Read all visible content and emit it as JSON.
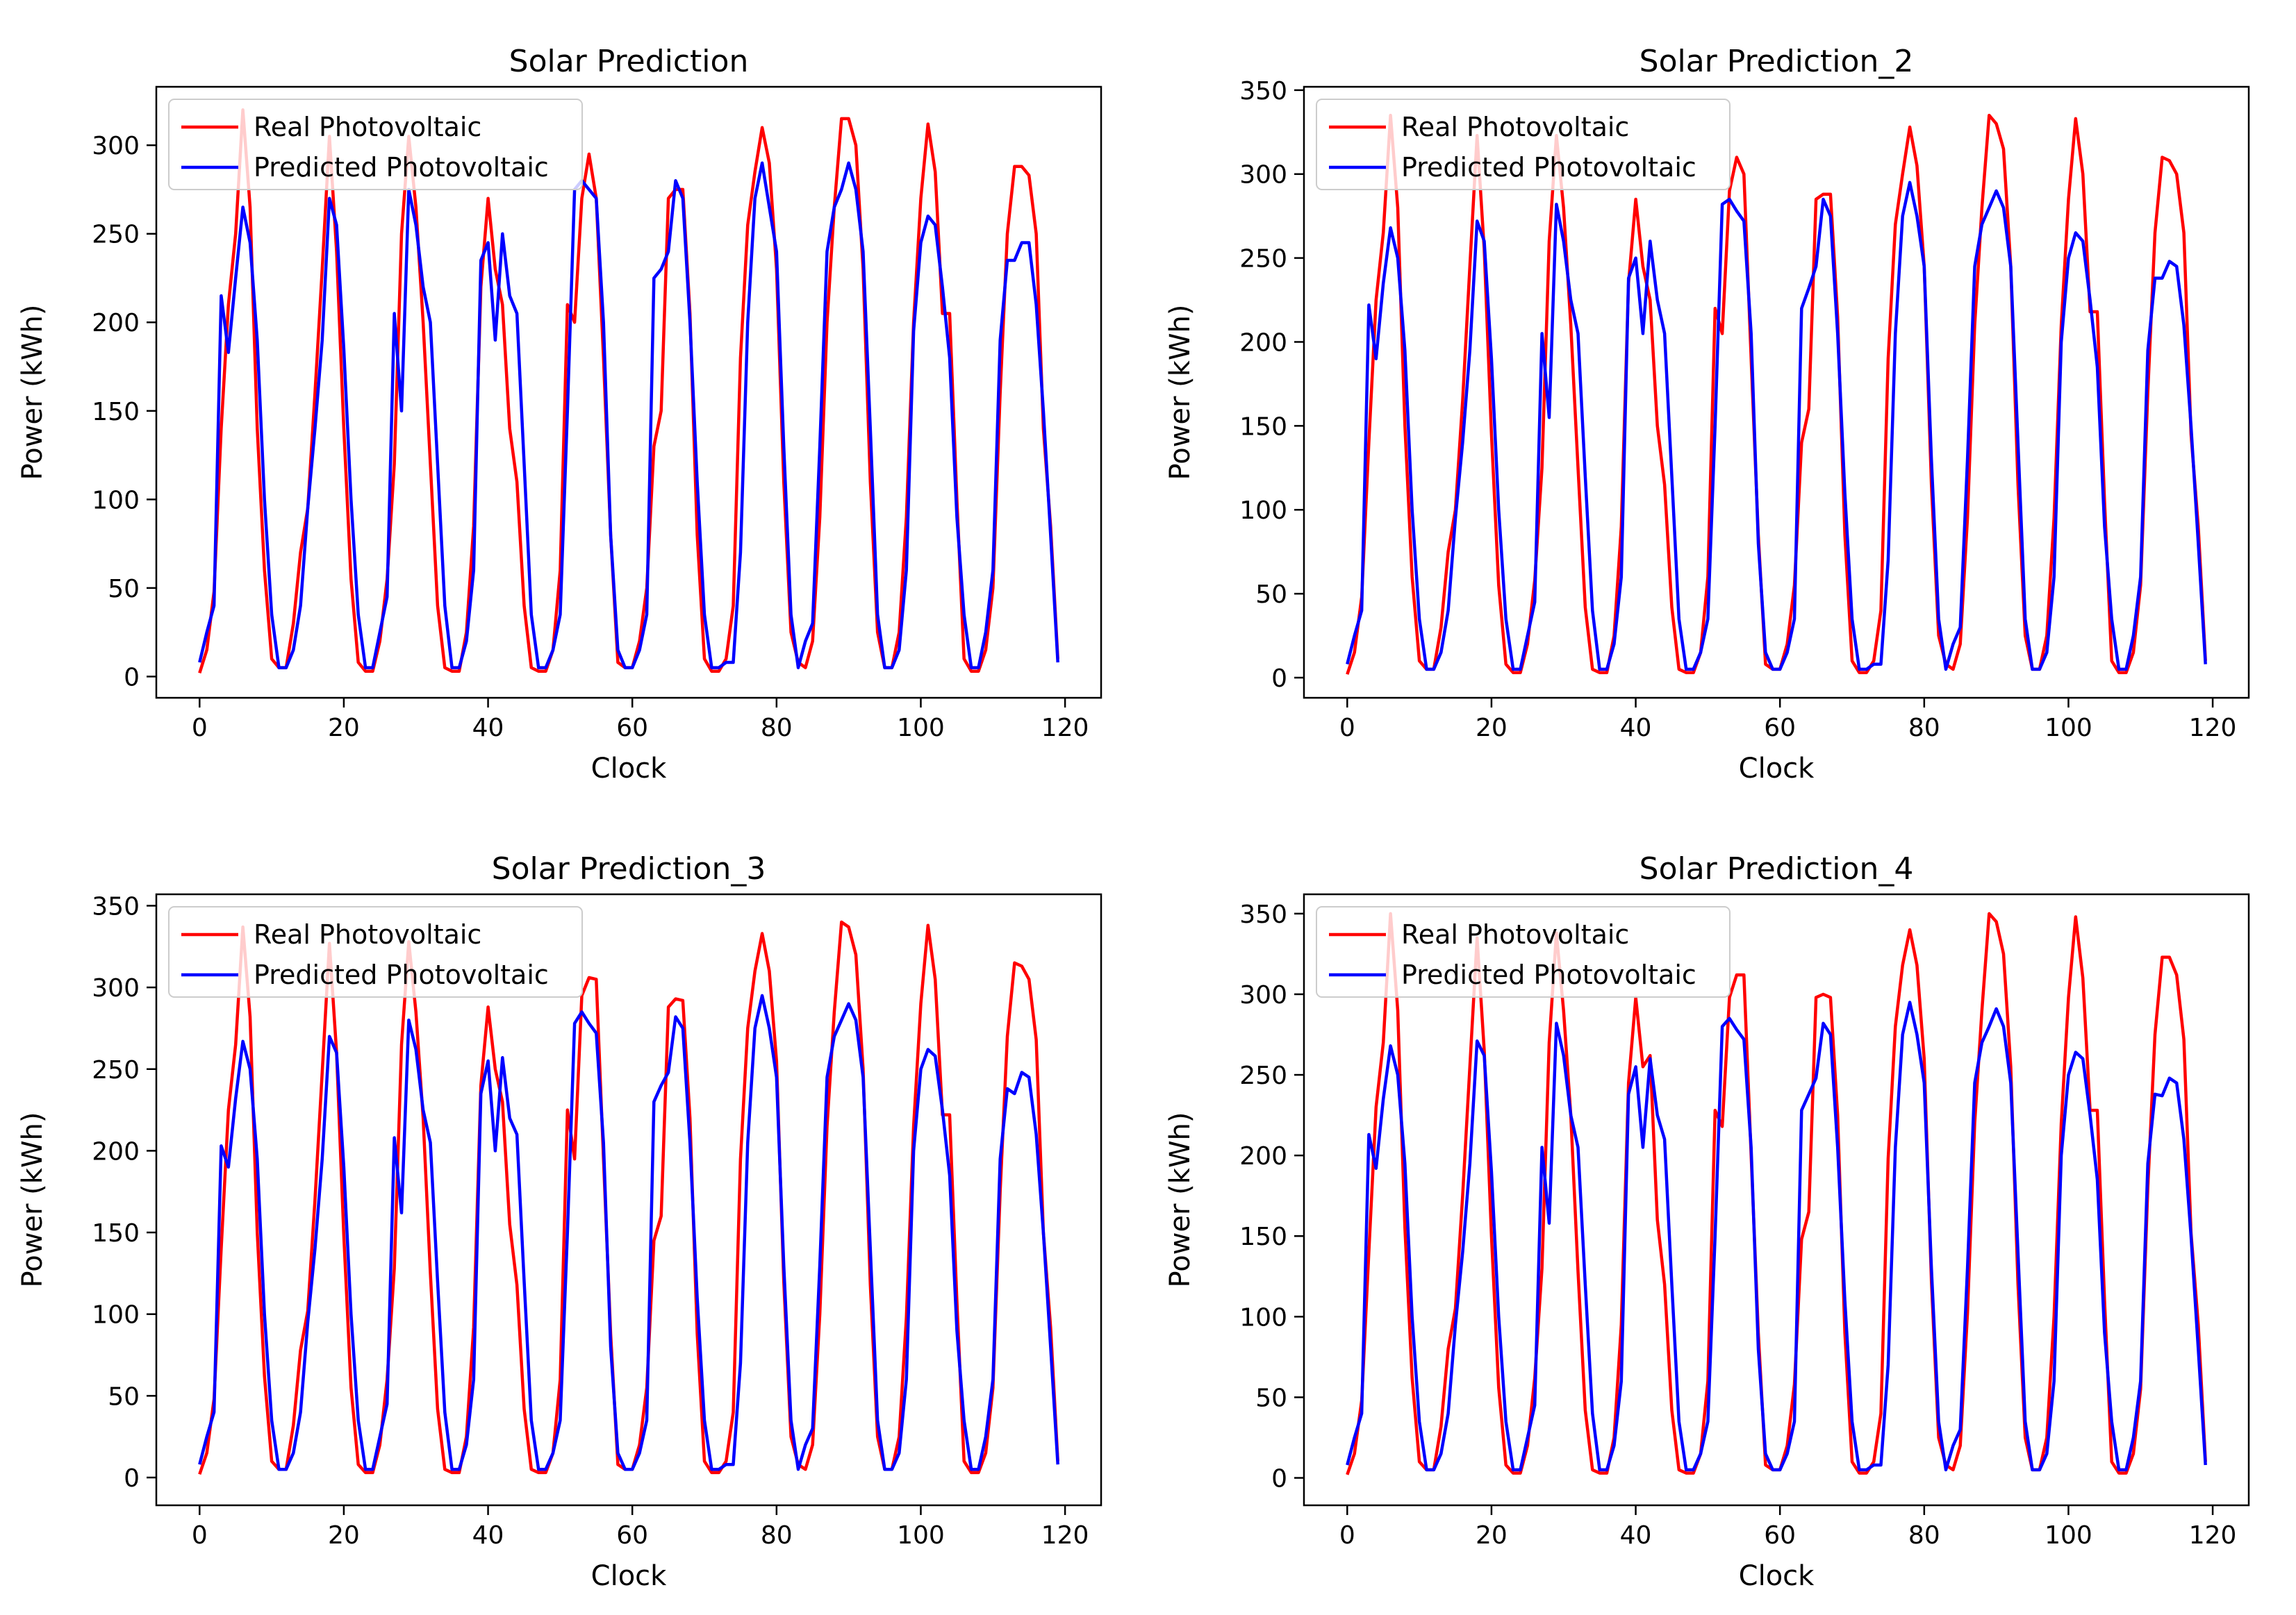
{
  "colors": {
    "real": "#ff0000",
    "predicted": "#0000ff"
  },
  "chart_data": [
    {
      "type": "line",
      "title": "Solar Prediction",
      "xlabel": "Clock",
      "ylabel": "Power (kWh)",
      "xlim": [
        -6,
        125
      ],
      "ylim": [
        -12,
        333
      ],
      "xticks": [
        0,
        20,
        40,
        60,
        80,
        100,
        120
      ],
      "yticks": [
        0,
        50,
        100,
        150,
        200,
        250,
        300
      ],
      "legend": "top-left",
      "series": [
        {
          "name": "Real Photovoltaic",
          "color": "#ff0000",
          "values": [
            2,
            15,
            48,
            140,
            210,
            250,
            320,
            265,
            140,
            60,
            10,
            5,
            5,
            30,
            70,
            95,
            160,
            230,
            305,
            240,
            140,
            55,
            8,
            3,
            3,
            20,
            55,
            120,
            250,
            305,
            265,
            200,
            120,
            40,
            5,
            3,
            3,
            25,
            85,
            220,
            270,
            230,
            210,
            140,
            110,
            40,
            5,
            3,
            3,
            15,
            60,
            210,
            200,
            270,
            295,
            270,
            180,
            80,
            8,
            5,
            5,
            20,
            50,
            130,
            150,
            270,
            275,
            275,
            205,
            80,
            10,
            3,
            3,
            10,
            40,
            180,
            255,
            285,
            310,
            290,
            230,
            110,
            25,
            8,
            5,
            20,
            90,
            200,
            265,
            315,
            315,
            300,
            230,
            110,
            25,
            5,
            5,
            25,
            90,
            200,
            270,
            312,
            285,
            205,
            205,
            100,
            10,
            3,
            3,
            15,
            50,
            160,
            250,
            288,
            288,
            283,
            250,
            140,
            85,
            10
          ]
        },
        {
          "name": "Predicted Photovoltaic",
          "color": "#0000ff",
          "values": [
            8,
            25,
            40,
            215,
            183,
            225,
            265,
            245,
            190,
            100,
            35,
            5,
            5,
            15,
            40,
            95,
            140,
            190,
            270,
            255,
            185,
            100,
            35,
            5,
            5,
            25,
            45,
            205,
            150,
            275,
            255,
            220,
            200,
            120,
            40,
            5,
            5,
            20,
            60,
            235,
            245,
            190,
            250,
            215,
            205,
            120,
            35,
            5,
            5,
            15,
            35,
            150,
            275,
            280,
            275,
            270,
            200,
            80,
            15,
            5,
            5,
            15,
            35,
            225,
            230,
            240,
            280,
            270,
            200,
            110,
            35,
            5,
            5,
            8,
            8,
            70,
            200,
            270,
            290,
            265,
            240,
            130,
            35,
            5,
            20,
            30,
            130,
            240,
            265,
            275,
            290,
            275,
            240,
            140,
            35,
            5,
            5,
            15,
            60,
            195,
            245,
            260,
            255,
            220,
            180,
            90,
            35,
            5,
            5,
            25,
            60,
            190,
            235,
            235,
            245,
            245,
            210,
            150,
            80,
            8
          ]
        }
      ]
    },
    {
      "type": "line",
      "title": "Solar Prediction_2",
      "xlabel": "Clock",
      "ylabel": "Power (kWh)",
      "xlim": [
        -6,
        125
      ],
      "ylim": [
        -12,
        352
      ],
      "xticks": [
        0,
        20,
        40,
        60,
        80,
        100,
        120
      ],
      "yticks": [
        0,
        50,
        100,
        150,
        200,
        250,
        300,
        350
      ],
      "legend": "top-left",
      "series": [
        {
          "name": "Real Photovoltaic",
          "color": "#ff0000",
          "values": [
            2,
            15,
            48,
            140,
            225,
            265,
            335,
            280,
            150,
            60,
            10,
            5,
            5,
            30,
            75,
            100,
            165,
            245,
            323,
            255,
            145,
            55,
            8,
            3,
            3,
            20,
            58,
            125,
            260,
            323,
            280,
            210,
            125,
            42,
            5,
            3,
            3,
            25,
            90,
            235,
            285,
            245,
            225,
            150,
            115,
            42,
            5,
            3,
            3,
            15,
            60,
            220,
            205,
            290,
            310,
            300,
            190,
            85,
            8,
            5,
            5,
            20,
            55,
            140,
            160,
            285,
            288,
            288,
            215,
            85,
            10,
            3,
            3,
            10,
            40,
            190,
            270,
            300,
            328,
            305,
            245,
            115,
            25,
            8,
            5,
            20,
            95,
            210,
            280,
            335,
            330,
            315,
            245,
            115,
            25,
            5,
            5,
            25,
            95,
            210,
            285,
            333,
            300,
            218,
            218,
            105,
            10,
            3,
            3,
            15,
            55,
            170,
            265,
            310,
            308,
            300,
            265,
            145,
            90,
            10
          ]
        },
        {
          "name": "Predicted Photovoltaic",
          "color": "#0000ff",
          "values": [
            8,
            25,
            40,
            222,
            190,
            235,
            268,
            250,
            195,
            100,
            35,
            5,
            5,
            15,
            40,
            95,
            140,
            195,
            272,
            260,
            190,
            100,
            35,
            5,
            5,
            25,
            45,
            205,
            155,
            282,
            260,
            225,
            205,
            120,
            40,
            5,
            5,
            20,
            60,
            238,
            250,
            205,
            260,
            225,
            205,
            120,
            35,
            5,
            5,
            15,
            35,
            150,
            282,
            285,
            278,
            272,
            205,
            80,
            15,
            5,
            5,
            15,
            35,
            220,
            232,
            245,
            285,
            275,
            205,
            110,
            35,
            5,
            5,
            8,
            8,
            70,
            205,
            275,
            295,
            275,
            245,
            130,
            35,
            5,
            20,
            30,
            130,
            245,
            270,
            280,
            290,
            280,
            245,
            140,
            35,
            5,
            5,
            15,
            60,
            200,
            250,
            265,
            260,
            225,
            185,
            90,
            35,
            5,
            5,
            25,
            60,
            195,
            238,
            238,
            248,
            245,
            210,
            150,
            80,
            8
          ]
        }
      ]
    },
    {
      "type": "line",
      "title": "Solar Prediction_3",
      "xlabel": "Clock",
      "ylabel": "Power (kWh)",
      "xlim": [
        -6,
        125
      ],
      "ylim": [
        -17,
        357
      ],
      "xticks": [
        0,
        20,
        40,
        60,
        80,
        100,
        120
      ],
      "yticks": [
        0,
        50,
        100,
        150,
        200,
        250,
        300,
        350
      ],
      "legend": "top-left",
      "series": [
        {
          "name": "Real Photovoltaic",
          "color": "#ff0000",
          "values": [
            2,
            15,
            48,
            140,
            225,
            265,
            337,
            282,
            150,
            62,
            10,
            5,
            5,
            32,
            78,
            102,
            170,
            248,
            327,
            260,
            148,
            55,
            8,
            3,
            3,
            20,
            60,
            128,
            265,
            328,
            285,
            220,
            125,
            42,
            5,
            3,
            3,
            25,
            92,
            240,
            288,
            250,
            230,
            155,
            118,
            42,
            5,
            3,
            3,
            15,
            60,
            225,
            195,
            295,
            306,
            305,
            195,
            88,
            8,
            5,
            5,
            20,
            55,
            145,
            160,
            288,
            293,
            292,
            220,
            88,
            10,
            3,
            3,
            10,
            40,
            195,
            275,
            310,
            333,
            310,
            255,
            120,
            25,
            8,
            5,
            20,
            100,
            215,
            285,
            340,
            337,
            320,
            250,
            118,
            25,
            5,
            5,
            25,
            98,
            215,
            290,
            338,
            305,
            222,
            222,
            108,
            10,
            3,
            3,
            15,
            55,
            175,
            270,
            315,
            313,
            305,
            268,
            150,
            92,
            10
          ]
        },
        {
          "name": "Predicted Photovoltaic",
          "color": "#0000ff",
          "values": [
            8,
            25,
            40,
            203,
            190,
            232,
            267,
            250,
            195,
            100,
            35,
            5,
            5,
            15,
            40,
            95,
            140,
            195,
            270,
            260,
            190,
            100,
            35,
            5,
            5,
            25,
            45,
            208,
            162,
            280,
            262,
            225,
            205,
            120,
            40,
            5,
            5,
            20,
            60,
            235,
            255,
            200,
            257,
            220,
            210,
            120,
            35,
            5,
            5,
            15,
            35,
            150,
            278,
            285,
            278,
            272,
            205,
            80,
            15,
            5,
            5,
            15,
            35,
            230,
            240,
            248,
            282,
            275,
            205,
            110,
            35,
            5,
            5,
            8,
            8,
            70,
            205,
            275,
            295,
            275,
            245,
            130,
            35,
            5,
            20,
            30,
            130,
            245,
            270,
            280,
            290,
            280,
            245,
            140,
            35,
            5,
            5,
            15,
            60,
            200,
            250,
            262,
            258,
            225,
            185,
            90,
            35,
            5,
            5,
            25,
            60,
            195,
            238,
            235,
            248,
            245,
            210,
            150,
            80,
            8
          ]
        }
      ]
    },
    {
      "type": "line",
      "title": "Solar Prediction_4",
      "xlabel": "Clock",
      "ylabel": "Power (kWh)",
      "xlim": [
        -6,
        125
      ],
      "ylim": [
        -17,
        362
      ],
      "xticks": [
        0,
        20,
        40,
        60,
        80,
        100,
        120
      ],
      "yticks": [
        0,
        50,
        100,
        150,
        200,
        250,
        300,
        350
      ],
      "legend": "top-left",
      "series": [
        {
          "name": "Real Photovoltaic",
          "color": "#ff0000",
          "values": [
            2,
            15,
            48,
            140,
            230,
            270,
            350,
            290,
            155,
            62,
            10,
            5,
            5,
            32,
            80,
            105,
            175,
            255,
            335,
            265,
            150,
            56,
            8,
            3,
            3,
            20,
            62,
            130,
            270,
            338,
            290,
            225,
            128,
            42,
            5,
            3,
            3,
            25,
            95,
            245,
            298,
            255,
            262,
            160,
            120,
            42,
            5,
            3,
            3,
            15,
            60,
            228,
            218,
            298,
            312,
            312,
            200,
            90,
            8,
            5,
            5,
            20,
            58,
            148,
            165,
            298,
            300,
            298,
            225,
            90,
            10,
            3,
            3,
            10,
            40,
            198,
            280,
            318,
            340,
            318,
            260,
            122,
            25,
            8,
            5,
            20,
            102,
            220,
            290,
            350,
            345,
            325,
            255,
            120,
            25,
            5,
            5,
            25,
            100,
            220,
            298,
            348,
            310,
            228,
            228,
            110,
            10,
            3,
            3,
            15,
            55,
            180,
            275,
            323,
            323,
            312,
            272,
            152,
            95,
            10
          ]
        },
        {
          "name": "Predicted Photovoltaic",
          "color": "#0000ff",
          "values": [
            8,
            25,
            40,
            213,
            192,
            235,
            268,
            250,
            195,
            100,
            35,
            5,
            5,
            15,
            40,
            95,
            140,
            195,
            271,
            262,
            190,
            100,
            35,
            5,
            5,
            25,
            45,
            205,
            158,
            282,
            262,
            225,
            205,
            120,
            40,
            5,
            5,
            20,
            60,
            238,
            255,
            205,
            260,
            225,
            210,
            120,
            35,
            5,
            5,
            15,
            35,
            150,
            280,
            285,
            278,
            272,
            205,
            80,
            15,
            5,
            5,
            15,
            35,
            228,
            238,
            248,
            282,
            275,
            205,
            110,
            35,
            5,
            5,
            8,
            8,
            70,
            205,
            275,
            295,
            275,
            245,
            130,
            35,
            5,
            20,
            30,
            130,
            245,
            270,
            280,
            291,
            280,
            245,
            140,
            35,
            5,
            5,
            15,
            60,
            200,
            250,
            264,
            260,
            225,
            185,
            90,
            35,
            5,
            5,
            25,
            60,
            195,
            238,
            237,
            248,
            245,
            210,
            150,
            80,
            8
          ]
        }
      ]
    }
  ]
}
